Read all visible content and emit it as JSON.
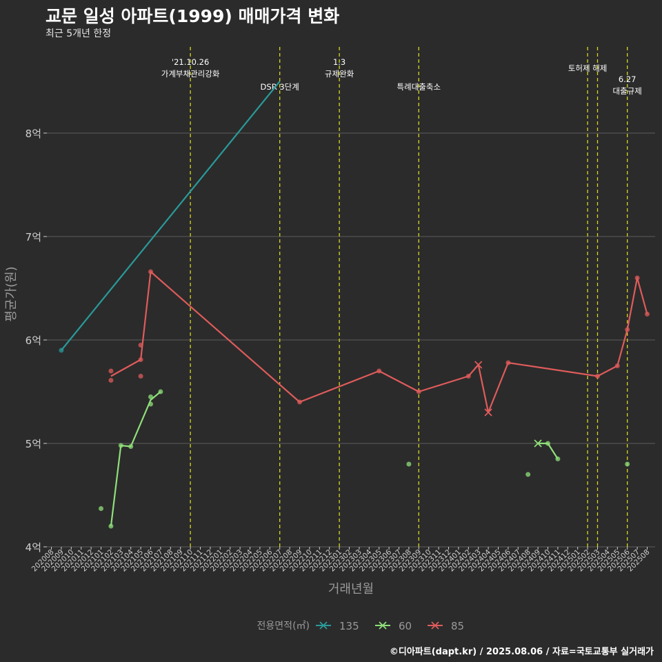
{
  "title": "교문 일성 아파트(1999) 매매가격 변화",
  "subtitle": "최근 5개년 한정",
  "caption": "©디아파트(dapt.kr) / 2025.08.06 / 자료=국토교통부 실거래가",
  "colors": {
    "background": "#2b2b2b",
    "grid": "#5e5e5e",
    "axis_text": "#cfcfcf",
    "vline": "#d8d820",
    "s135": "#2a9a9a",
    "s60": "#8fe07a",
    "s85": "#e05b5b"
  },
  "chart_data": {
    "type": "line",
    "title": "교문 일성 아파트(1999) 매매가격 변화",
    "subtitle": "최근 5개년 한정",
    "xlabel": "거래년월",
    "ylabel": "평균가(원)",
    "ylim": [
      4,
      9
    ],
    "yticks": [
      4,
      5,
      6,
      7,
      8
    ],
    "ytick_labels": [
      "4억",
      "5억",
      "6억",
      "7억",
      "8억"
    ],
    "grid": true,
    "legend_position": "bottom",
    "legend_title": "전용면적(㎡)",
    "x_categories": [
      "202008",
      "202009",
      "202010",
      "202011",
      "202012",
      "202101",
      "202102",
      "202103",
      "202104",
      "202105",
      "202106",
      "202107",
      "202108",
      "202109",
      "202110",
      "202111",
      "202112",
      "202201",
      "202202",
      "202203",
      "202204",
      "202205",
      "202206",
      "202207",
      "202208",
      "202209",
      "202210",
      "202211",
      "202212",
      "202301",
      "202302",
      "202303",
      "202304",
      "202305",
      "202306",
      "202307",
      "202308",
      "202309",
      "202310",
      "202311",
      "202312",
      "202401",
      "202402",
      "202403",
      "202404",
      "202405",
      "202406",
      "202407",
      "202408",
      "202409",
      "202410",
      "202411",
      "202412",
      "202501",
      "202502",
      "202503",
      "202504",
      "202505",
      "202506",
      "202507",
      "202508"
    ],
    "series": [
      {
        "name": "135",
        "color": "#2a9a9a",
        "line": [
          [
            "202009",
            5.9
          ],
          [
            "202207",
            8.5
          ]
        ],
        "points": [
          [
            "202009",
            5.9
          ]
        ],
        "crosses": []
      },
      {
        "name": "60",
        "color": "#8fe07a",
        "line": [
          [
            "202102",
            4.2
          ],
          [
            "202103",
            4.98
          ],
          [
            "202104",
            4.97
          ],
          [
            "202106",
            5.42
          ],
          [
            "202107",
            5.5
          ],
          null,
          [
            "202409",
            5.0
          ],
          [
            "202410",
            5.0
          ],
          [
            "202411",
            4.85
          ]
        ],
        "points": [
          [
            "202101",
            4.37
          ],
          [
            "202102",
            4.2
          ],
          [
            "202103",
            4.98
          ],
          [
            "202104",
            4.97
          ],
          [
            "202106",
            5.38
          ],
          [
            "202106",
            5.45
          ],
          [
            "202107",
            5.5
          ],
          [
            "202308",
            4.8
          ],
          [
            "202408",
            4.7
          ],
          [
            "202410",
            5.0
          ],
          [
            "202411",
            4.85
          ],
          [
            "202506",
            4.8
          ]
        ],
        "crosses": [
          [
            "202409",
            5.0
          ]
        ]
      },
      {
        "name": "85",
        "color": "#e05b5b",
        "line": [
          [
            "202102",
            5.65
          ],
          [
            "202105",
            5.81
          ],
          [
            "202106",
            6.66
          ],
          [
            "202209",
            5.4
          ],
          [
            "202305",
            5.7
          ],
          [
            "202309",
            5.5
          ],
          [
            "202402",
            5.65
          ],
          [
            "202403",
            5.76
          ],
          [
            "202404",
            5.3
          ],
          [
            "202406",
            5.78
          ],
          [
            "202503",
            5.65
          ],
          [
            "202505",
            5.75
          ],
          [
            "202506",
            6.1
          ],
          [
            "202507",
            6.6
          ],
          [
            "202508",
            6.25
          ]
        ],
        "points": [
          [
            "202102",
            5.7
          ],
          [
            "202102",
            5.61
          ],
          [
            "202105",
            5.95
          ],
          [
            "202105",
            5.65
          ],
          [
            "202105",
            5.81
          ],
          [
            "202106",
            6.66
          ],
          [
            "202209",
            5.4
          ],
          [
            "202305",
            5.7
          ],
          [
            "202309",
            5.5
          ],
          [
            "202402",
            5.65
          ],
          [
            "202406",
            5.78
          ],
          [
            "202503",
            5.65
          ],
          [
            "202505",
            5.75
          ],
          [
            "202506",
            6.1
          ],
          [
            "202507",
            6.6
          ],
          [
            "202508",
            6.25
          ]
        ],
        "crosses": [
          [
            "202403",
            5.76
          ],
          [
            "202404",
            5.3
          ]
        ]
      }
    ],
    "events": [
      {
        "x": "202110",
        "lines": [
          "'21.10.26",
          "가계부채관리강화"
        ],
        "row": 1
      },
      {
        "x": "202207",
        "lines": [
          "DSR 3단계"
        ],
        "row": 2
      },
      {
        "x": "202301",
        "lines": [
          "1.3",
          "규제완화"
        ],
        "row": 1
      },
      {
        "x": "202309",
        "lines": [
          "특례대출축소"
        ],
        "row": 2
      },
      {
        "x": "202502",
        "lines": [
          "토허제 해제"
        ],
        "row": 1,
        "label_offset": "left"
      },
      {
        "x": "202503",
        "lines": [],
        "row": 1
      },
      {
        "x": "202506",
        "lines": [
          "6.27",
          "대출규제"
        ],
        "row": 3
      }
    ]
  }
}
